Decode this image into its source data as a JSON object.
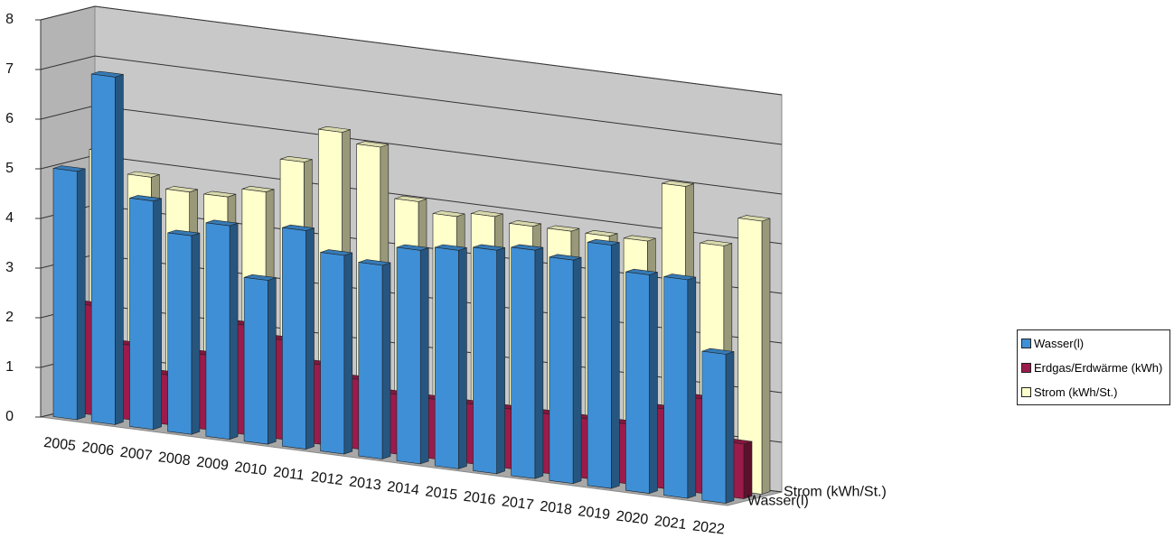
{
  "chart_data": {
    "type": "bar3d",
    "categories": [
      "2005",
      "2006",
      "2007",
      "2008",
      "2009",
      "2010",
      "2011",
      "2012",
      "2013",
      "2014",
      "2015",
      "2016",
      "2017",
      "2018",
      "2019",
      "2020",
      "2021",
      "2022"
    ],
    "series": [
      {
        "name": "Wasser(l)",
        "color": "#3f8fd6",
        "values": [
          5.0,
          7.0,
          4.6,
          4.0,
          4.3,
          3.3,
          4.4,
          4.0,
          3.9,
          4.3,
          4.4,
          4.5,
          4.6,
          4.5,
          4.9,
          4.4,
          4.4,
          3.0
        ]
      },
      {
        "name": "Erdgas/Erdwärme (kWh)",
        "color": "#9b1b4a",
        "values": [
          2.2,
          1.5,
          1.0,
          1.5,
          2.2,
          2.0,
          1.6,
          1.4,
          1.2,
          1.2,
          1.2,
          1.2,
          1.2,
          1.2,
          1.2,
          1.6,
          1.9,
          1.1
        ]
      },
      {
        "name": "Strom (kWh/St.)",
        "color": "#ffffcc",
        "values": [
          5.2,
          4.8,
          4.6,
          4.6,
          4.8,
          5.5,
          6.2,
          6.0,
          5.0,
          4.8,
          4.9,
          4.8,
          4.8,
          4.8,
          4.8,
          6.0,
          4.9,
          5.5
        ]
      }
    ],
    "ylim": [
      0,
      8
    ],
    "yticks": [
      0,
      1,
      2,
      3,
      4,
      5,
      6,
      7,
      8
    ],
    "grid": true
  }
}
